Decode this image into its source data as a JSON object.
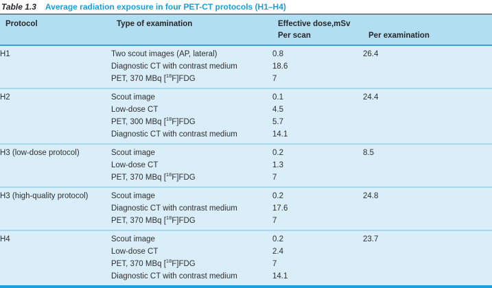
{
  "title": {
    "label": "Table 1.3",
    "text": "Average radiation exposure in four PET-CT protocols (H1–H4)"
  },
  "header": {
    "protocol": "Protocol",
    "type_of_examination": "Type of examination",
    "dose_group": "Effective dose,mSv",
    "per_scan": "Per scan",
    "per_examination": "Per examination"
  },
  "rows": [
    {
      "protocol": "H1",
      "per_examination": "26.4",
      "exams": [
        {
          "type": "Two scout images (AP, lateral)",
          "per_scan": "0.8"
        },
        {
          "type": "Diagnostic CT with contrast medium",
          "per_scan": "18.6"
        },
        {
          "type": "PET, 370 MBq [18F]FDG",
          "per_scan": "7"
        }
      ]
    },
    {
      "protocol": "H2",
      "per_examination": "24.4",
      "exams": [
        {
          "type": "Scout image",
          "per_scan": "0.1"
        },
        {
          "type": "Low-dose CT",
          "per_scan": "4.5"
        },
        {
          "type": "PET, 300 MBq [18F]FDG",
          "per_scan": "5.7"
        },
        {
          "type": "Diagnostic CT with contrast medium",
          "per_scan": "14.1"
        }
      ]
    },
    {
      "protocol": "H3 (low-dose protocol)",
      "per_examination": "8.5",
      "exams": [
        {
          "type": "Scout image",
          "per_scan": "0.2"
        },
        {
          "type": "Low-dose CT",
          "per_scan": "1.3"
        },
        {
          "type": "PET, 370 MBq [18F]FDG",
          "per_scan": "7"
        }
      ]
    },
    {
      "protocol": "H3 (high-quality protocol)",
      "per_examination": "24.8",
      "exams": [
        {
          "type": "Scout image",
          "per_scan": "0.2"
        },
        {
          "type": "Diagnostic CT with contrast medium",
          "per_scan": "17.6"
        },
        {
          "type": "PET, 370 MBq [18F]FDG",
          "per_scan": "7"
        }
      ]
    },
    {
      "protocol": "H4",
      "per_examination": "23.7",
      "exams": [
        {
          "type": "Scout image",
          "per_scan": "0.2"
        },
        {
          "type": "Low-dose CT",
          "per_scan": "2.4"
        },
        {
          "type": "PET, 370 MBq [18F]FDG",
          "per_scan": "7"
        },
        {
          "type": "Diagnostic CT with contrast medium",
          "per_scan": "14.1"
        }
      ]
    }
  ],
  "colors": {
    "header_bg": "#b1def0",
    "body_bg": "#d9eef8",
    "accent_blue": "#1b9ed9",
    "header_rule": "#2ba3dc",
    "block_separator": "#a6d6ea",
    "top_rule": "#2a2a35",
    "text": "#2e2e2e"
  }
}
